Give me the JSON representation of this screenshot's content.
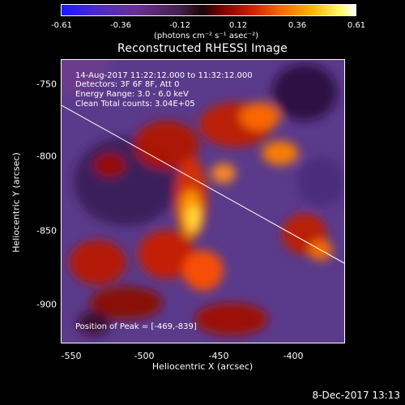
{
  "colorbar": {
    "ticks": [
      "-0.61",
      "-0.36",
      "-0.12",
      "0.12",
      "0.36",
      "0.61"
    ],
    "unit": "(photons cm⁻² s⁻¹ asec⁻²)"
  },
  "title": "Reconstructed RHESSI Image",
  "info": {
    "line1": "14-Aug-2017 11:22:12.000 to 11:32:12.000",
    "line2": "Detectors: 3F 6F 8F, Att 0",
    "line3": "Energy Range: 3.0 - 6.0 keV",
    "line4": "Clean     Total counts: 3.04E+05"
  },
  "peak_text": "Position of Peak = [-469,-839]",
  "axes": {
    "xlabel": "Heliocentric X (arcsec)",
    "ylabel": "Heliocentric Y (arcsec)",
    "xticks": [
      "-550",
      "-500",
      "-450",
      "-400"
    ],
    "yticks": [
      "-750",
      "-800",
      "-850",
      "-900"
    ]
  },
  "datestamp": "8-Dec-2017 13:13",
  "colors": {
    "background": "#000000",
    "foreground": "#ffffff",
    "limb_line": "#ffffff"
  }
}
